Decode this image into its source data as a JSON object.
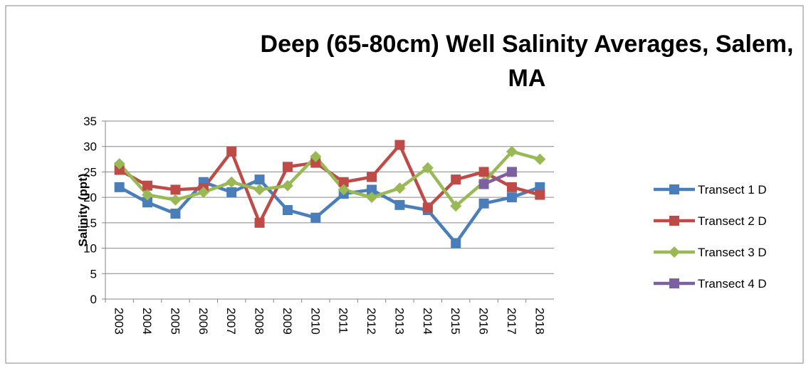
{
  "chart_data": {
    "type": "line",
    "title": "Deep (65-80cm) Well Salinity Averages, Salem, MA",
    "ylabel": "Salinity (ppt)",
    "categories": [
      "2003",
      "2004",
      "2005",
      "2006",
      "2007",
      "2008",
      "2009",
      "2010",
      "2011",
      "2012",
      "2013",
      "2014",
      "2015",
      "2016",
      "2017",
      "2018"
    ],
    "series": [
      {
        "name": "Transect 1 D",
        "color": "#4a7ebb",
        "marker": "square",
        "values": [
          22,
          19,
          16.8,
          23,
          21,
          23.5,
          17.5,
          16,
          20.7,
          21.5,
          18.5,
          17.5,
          11,
          18.8,
          20,
          22
        ]
      },
      {
        "name": "Transect 2 D",
        "color": "#be4b48",
        "marker": "square",
        "values": [
          25.4,
          22.3,
          21.5,
          21.8,
          29,
          15,
          26,
          26.8,
          23,
          24,
          30.3,
          18,
          23.5,
          25,
          22,
          20.5
        ]
      },
      {
        "name": "Transect 3 D",
        "color": "#98b954",
        "marker": "diamond",
        "values": [
          26.6,
          20.5,
          19.5,
          21,
          23,
          21.5,
          22.3,
          28,
          21.5,
          20,
          21.8,
          25.8,
          18.3,
          23,
          29,
          27.5
        ]
      },
      {
        "name": "Transect 4 D",
        "color": "#7d60a0",
        "marker": "square",
        "values": [
          null,
          null,
          null,
          null,
          null,
          null,
          null,
          null,
          null,
          null,
          null,
          null,
          null,
          22.6,
          25,
          null
        ]
      }
    ],
    "ylim": [
      0,
      35
    ],
    "yticks": [
      0,
      5,
      10,
      15,
      20,
      25,
      30,
      35
    ],
    "grid": true,
    "legend": "right"
  }
}
